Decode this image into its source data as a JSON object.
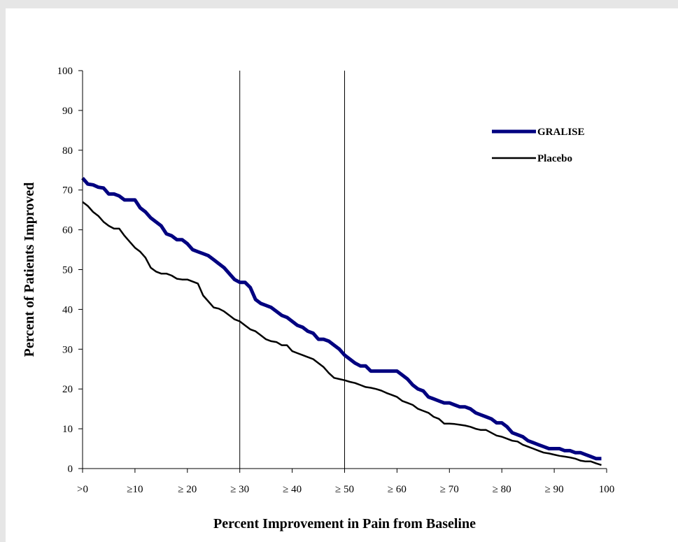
{
  "chart_data": {
    "type": "line",
    "xlabel": "Percent Improvement in Pain from Baseline",
    "ylabel": "Percent of Patients Improved",
    "xlim": [
      0,
      100
    ],
    "ylim": [
      0,
      100
    ],
    "x_ticks": [
      {
        "value": 0,
        "label": ">0"
      },
      {
        "value": 10,
        "label": "≥10"
      },
      {
        "value": 20,
        "label": "≥ 20"
      },
      {
        "value": 30,
        "label": "≥ 30"
      },
      {
        "value": 40,
        "label": "≥ 40"
      },
      {
        "value": 50,
        "label": "≥ 50"
      },
      {
        "value": 60,
        "label": "≥ 60"
      },
      {
        "value": 70,
        "label": "≥ 70"
      },
      {
        "value": 80,
        "label": "≥ 80"
      },
      {
        "value": 90,
        "label": "≥ 90"
      },
      {
        "value": 100,
        "label": "100"
      }
    ],
    "y_ticks": [
      0,
      10,
      20,
      30,
      40,
      50,
      60,
      70,
      80,
      90,
      100
    ],
    "reference_lines_x": [
      30,
      50
    ],
    "legend_position": "top-right",
    "series": [
      {
        "name": "GRALISE",
        "color": "#000080",
        "points": [
          [
            0,
            73
          ],
          [
            1,
            71.5
          ],
          [
            2,
            71.3
          ],
          [
            3,
            70.7
          ],
          [
            4,
            70.5
          ],
          [
            5,
            69
          ],
          [
            6,
            69
          ],
          [
            7,
            68.5
          ],
          [
            8,
            67.5
          ],
          [
            9,
            67.5
          ],
          [
            10,
            67.5
          ],
          [
            11,
            65.5
          ],
          [
            12,
            64.5
          ],
          [
            13,
            63
          ],
          [
            14,
            62
          ],
          [
            15,
            61
          ],
          [
            16,
            59
          ],
          [
            17,
            58.5
          ],
          [
            18,
            57.5
          ],
          [
            19,
            57.5
          ],
          [
            20,
            56.5
          ],
          [
            21,
            55
          ],
          [
            22,
            54.5
          ],
          [
            23,
            54
          ],
          [
            24,
            53.5
          ],
          [
            25,
            52.5
          ],
          [
            26,
            51.5
          ],
          [
            27,
            50.5
          ],
          [
            28,
            49
          ],
          [
            29,
            47.5
          ],
          [
            30,
            46.8
          ],
          [
            31,
            46.8
          ],
          [
            32,
            45.5
          ],
          [
            33,
            42.5
          ],
          [
            34,
            41.5
          ],
          [
            35,
            41
          ],
          [
            36,
            40.5
          ],
          [
            37,
            39.5
          ],
          [
            38,
            38.5
          ],
          [
            39,
            38
          ],
          [
            40,
            37
          ],
          [
            41,
            36
          ],
          [
            42,
            35.5
          ],
          [
            43,
            34.5
          ],
          [
            44,
            34
          ],
          [
            45,
            32.5
          ],
          [
            46,
            32.5
          ],
          [
            47,
            32
          ],
          [
            48,
            31
          ],
          [
            49,
            30
          ],
          [
            50,
            28.5
          ],
          [
            51,
            27.5
          ],
          [
            52,
            26.5
          ],
          [
            53,
            25.8
          ],
          [
            54,
            25.8
          ],
          [
            55,
            24.5
          ],
          [
            56,
            24.5
          ],
          [
            57,
            24.5
          ],
          [
            58,
            24.5
          ],
          [
            59,
            24.5
          ],
          [
            60,
            24.5
          ],
          [
            61,
            23.5
          ],
          [
            62,
            22.5
          ],
          [
            63,
            21
          ],
          [
            64,
            20
          ],
          [
            65,
            19.5
          ],
          [
            66,
            18
          ],
          [
            67,
            17.5
          ],
          [
            68,
            17
          ],
          [
            69,
            16.5
          ],
          [
            70,
            16.5
          ],
          [
            71,
            16
          ],
          [
            72,
            15.5
          ],
          [
            73,
            15.5
          ],
          [
            74,
            15
          ],
          [
            75,
            14
          ],
          [
            76,
            13.5
          ],
          [
            77,
            13
          ],
          [
            78,
            12.5
          ],
          [
            79,
            11.5
          ],
          [
            80,
            11.5
          ],
          [
            81,
            10.5
          ],
          [
            82,
            9
          ],
          [
            83,
            8.5
          ],
          [
            84,
            8
          ],
          [
            85,
            7
          ],
          [
            86,
            6.5
          ],
          [
            87,
            6
          ],
          [
            88,
            5.5
          ],
          [
            89,
            5
          ],
          [
            90,
            5
          ],
          [
            91,
            5
          ],
          [
            92,
            4.5
          ],
          [
            93,
            4.5
          ],
          [
            94,
            4
          ],
          [
            95,
            4
          ],
          [
            96,
            3.5
          ],
          [
            97,
            3
          ],
          [
            98,
            2.5
          ],
          [
            99,
            2.5
          ]
        ]
      },
      {
        "name": "Placebo",
        "color": "#000000",
        "points": [
          [
            0,
            67
          ],
          [
            1,
            66
          ],
          [
            2,
            64.5
          ],
          [
            3,
            63.5
          ],
          [
            4,
            62
          ],
          [
            5,
            61
          ],
          [
            6,
            60.3
          ],
          [
            7,
            60.3
          ],
          [
            8,
            58.5
          ],
          [
            9,
            57
          ],
          [
            10,
            55.5
          ],
          [
            11,
            54.5
          ],
          [
            12,
            53
          ],
          [
            13,
            50.5
          ],
          [
            14,
            49.5
          ],
          [
            15,
            49
          ],
          [
            16,
            49
          ],
          [
            17,
            48.5
          ],
          [
            18,
            47.7
          ],
          [
            19,
            47.5
          ],
          [
            20,
            47.5
          ],
          [
            21,
            47
          ],
          [
            22,
            46.5
          ],
          [
            23,
            43.5
          ],
          [
            24,
            42
          ],
          [
            25,
            40.5
          ],
          [
            26,
            40.2
          ],
          [
            27,
            39.5
          ],
          [
            28,
            38.5
          ],
          [
            29,
            37.5
          ],
          [
            30,
            37
          ],
          [
            31,
            36
          ],
          [
            32,
            35
          ],
          [
            33,
            34.5
          ],
          [
            34,
            33.5
          ],
          [
            35,
            32.5
          ],
          [
            36,
            32
          ],
          [
            37,
            31.8
          ],
          [
            38,
            31
          ],
          [
            39,
            31
          ],
          [
            40,
            29.5
          ],
          [
            41,
            29
          ],
          [
            42,
            28.5
          ],
          [
            43,
            28
          ],
          [
            44,
            27.5
          ],
          [
            45,
            26.5
          ],
          [
            46,
            25.5
          ],
          [
            47,
            24
          ],
          [
            48,
            22.8
          ],
          [
            49,
            22.5
          ],
          [
            50,
            22.2
          ],
          [
            51,
            21.8
          ],
          [
            52,
            21.5
          ],
          [
            53,
            21
          ],
          [
            54,
            20.5
          ],
          [
            55,
            20.3
          ],
          [
            56,
            20
          ],
          [
            57,
            19.6
          ],
          [
            58,
            19
          ],
          [
            59,
            18.5
          ],
          [
            60,
            18
          ],
          [
            61,
            17
          ],
          [
            62,
            16.5
          ],
          [
            63,
            16
          ],
          [
            64,
            15
          ],
          [
            65,
            14.5
          ],
          [
            66,
            14
          ],
          [
            67,
            13
          ],
          [
            68,
            12.5
          ],
          [
            69,
            11.3
          ],
          [
            70,
            11.3
          ],
          [
            71,
            11.2
          ],
          [
            72,
            11
          ],
          [
            73,
            10.8
          ],
          [
            74,
            10.5
          ],
          [
            75,
            10
          ],
          [
            76,
            9.7
          ],
          [
            77,
            9.7
          ],
          [
            78,
            9
          ],
          [
            79,
            8.3
          ],
          [
            80,
            8
          ],
          [
            81,
            7.5
          ],
          [
            82,
            7
          ],
          [
            83,
            6.8
          ],
          [
            84,
            6
          ],
          [
            85,
            5.5
          ],
          [
            86,
            5
          ],
          [
            87,
            4.5
          ],
          [
            88,
            4
          ],
          [
            89,
            3.8
          ],
          [
            90,
            3.5
          ],
          [
            91,
            3.2
          ],
          [
            92,
            3
          ],
          [
            93,
            2.8
          ],
          [
            94,
            2.5
          ],
          [
            95,
            2
          ],
          [
            96,
            1.8
          ],
          [
            97,
            1.8
          ],
          [
            98,
            1.3
          ],
          [
            99,
            0.9
          ]
        ]
      }
    ]
  }
}
